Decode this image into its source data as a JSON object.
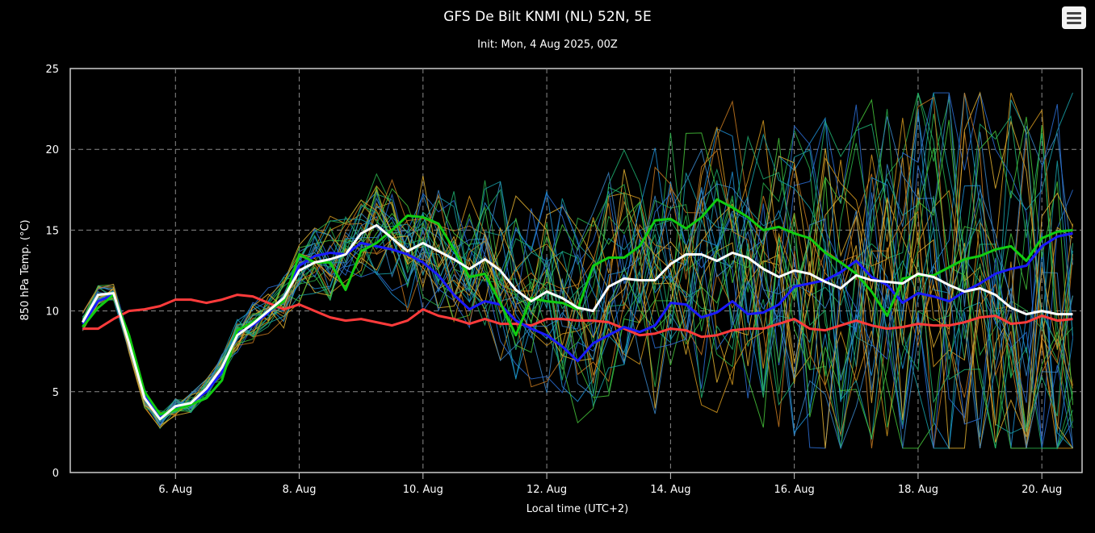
{
  "toolbar": {
    "menu_icon": "hamburger-menu-icon"
  },
  "chart_data": {
    "type": "line",
    "title": "GFS De Bilt KNMI (NL) 52N, 5E",
    "subtitle": "Init: Mon, 4 Aug 2025, 00Z",
    "xlabel": "Local time (UTC+2)",
    "ylabel": "850 hPa Temp. (°C)",
    "x_unit": "days since 4 Aug 2025 00:00 local",
    "xlim": [
      4.3,
      20.65
    ],
    "ylim": [
      0,
      25
    ],
    "y_ticks": [
      0,
      5,
      10,
      15,
      20,
      25
    ],
    "x_ticks": [
      {
        "x": 6,
        "label": "6. Aug"
      },
      {
        "x": 8,
        "label": "8. Aug"
      },
      {
        "x": 10,
        "label": "10. Aug"
      },
      {
        "x": 12,
        "label": "12. Aug"
      },
      {
        "x": 14,
        "label": "14. Aug"
      },
      {
        "x": 16,
        "label": "16. Aug"
      },
      {
        "x": 18,
        "label": "18. Aug"
      },
      {
        "x": 20,
        "label": "20. Aug"
      }
    ],
    "grid": true,
    "legend": "none",
    "member_count": 30,
    "member_colors": [
      "#1f8fd6",
      "#2ab04a",
      "#d69a1e",
      "#2c6fd6",
      "#18a0a8",
      "#45c43a",
      "#c87a20",
      "#3a86c8",
      "#1fb070",
      "#e0b030"
    ],
    "series": [
      {
        "name": "",
        "color": "#ffffff",
        "width": 3,
        "x": [
          4.5,
          4.75,
          5,
          5.25,
          5.5,
          5.75,
          6,
          6.25,
          6.5,
          6.75,
          7,
          7.25,
          7.5,
          7.75,
          8,
          8.25,
          8.5,
          8.75,
          9,
          9.25,
          9.5,
          9.75,
          10,
          10.25,
          10.5,
          10.75,
          11,
          11.25,
          11.5,
          11.75,
          12,
          12.25,
          12.5,
          12.75,
          13,
          13.25,
          13.5,
          13.75,
          14,
          14.25,
          14.5,
          14.75,
          15,
          15.25,
          15.5,
          15.75,
          16,
          16.25,
          16.5,
          16.75,
          17,
          17.25,
          17.5,
          17.75,
          18,
          18.25,
          18.5,
          18.75,
          19,
          19.25,
          19.5,
          19.75,
          20,
          20.25,
          20.5
        ],
        "values": [
          9.3,
          11.0,
          11.1,
          8.0,
          4.6,
          3.3,
          4.1,
          4.3,
          5.2,
          6.5,
          8.5,
          9.2,
          10.0,
          10.8,
          12.5,
          13.0,
          13.2,
          13.5,
          14.8,
          15.3,
          14.5,
          13.7,
          14.2,
          13.7,
          13.2,
          12.6,
          13.2,
          12.5,
          11.3,
          10.6,
          11.2,
          10.8,
          10.2,
          10.0,
          11.5,
          12.0,
          11.9,
          11.9,
          12.9,
          13.5,
          13.5,
          13.1,
          13.6,
          13.3,
          12.6,
          12.1,
          12.5,
          12.3,
          11.8,
          11.4,
          12.2,
          11.9,
          11.8,
          11.7,
          12.3,
          12.1,
          11.6,
          11.2,
          11.4,
          11.0,
          10.2,
          9.8,
          10.0,
          9.8,
          9.8
        ]
      },
      {
        "name": "",
        "color": "#11cc11",
        "width": 3,
        "x": [
          4.5,
          4.75,
          5,
          5.25,
          5.5,
          5.75,
          6,
          6.25,
          6.5,
          6.75,
          7,
          7.25,
          7.5,
          7.75,
          8,
          8.25,
          8.5,
          8.75,
          9,
          9.25,
          9.5,
          9.75,
          10,
          10.25,
          10.5,
          10.75,
          11,
          11.25,
          11.5,
          11.75,
          12,
          12.25,
          12.5,
          12.75,
          13,
          13.25,
          13.5,
          13.75,
          14,
          14.25,
          14.5,
          14.75,
          15,
          15.25,
          15.5,
          15.75,
          16,
          16.25,
          16.5,
          16.75,
          17,
          17.25,
          17.5,
          17.75,
          18,
          18.25,
          18.5,
          18.75,
          19,
          19.25,
          19.5,
          19.75,
          20,
          20.25,
          20.5
        ],
        "values": [
          9.0,
          10.2,
          11.0,
          8.5,
          5.0,
          3.6,
          3.9,
          4.2,
          4.6,
          5.7,
          8.8,
          9.3,
          10.0,
          10.6,
          13.5,
          13.0,
          13.0,
          11.3,
          13.7,
          14.2,
          15.0,
          15.9,
          15.8,
          15.4,
          13.8,
          12.1,
          12.3,
          10.5,
          8.5,
          10.8,
          10.6,
          10.5,
          10.1,
          12.8,
          13.3,
          13.3,
          14.0,
          15.6,
          15.7,
          15.1,
          15.8,
          16.9,
          16.4,
          15.8,
          15.0,
          15.2,
          14.8,
          14.5,
          13.6,
          13.0,
          12.3,
          11.2,
          9.7,
          12.0,
          12.2,
          12.2,
          12.7,
          13.2,
          13.4,
          13.8,
          14.0,
          13.1,
          14.5,
          14.9,
          15.0
        ]
      },
      {
        "name": "",
        "color": "#1a1aff",
        "width": 3,
        "x": [
          4.5,
          4.75,
          5,
          5.25,
          5.5,
          5.75,
          6,
          6.25,
          6.5,
          6.75,
          7,
          7.25,
          7.5,
          7.75,
          8,
          8.25,
          8.5,
          8.75,
          9,
          9.25,
          9.5,
          9.75,
          10,
          10.25,
          10.5,
          10.75,
          11,
          11.25,
          11.5,
          11.75,
          12,
          12.25,
          12.5,
          12.75,
          13,
          13.25,
          13.5,
          13.75,
          14,
          14.25,
          14.5,
          14.75,
          15,
          15.25,
          15.5,
          15.75,
          16,
          16.25,
          16.5,
          16.75,
          17,
          17.25,
          17.5,
          17.75,
          18,
          18.25,
          18.5,
          18.75,
          19,
          19.25,
          19.5,
          19.75,
          20,
          20.25,
          20.5
        ],
        "values": [
          9.2,
          10.6,
          11.0,
          8.2,
          4.8,
          3.4,
          4.0,
          4.3,
          5.0,
          6.2,
          8.6,
          9.1,
          9.9,
          10.7,
          12.8,
          13.4,
          13.6,
          13.5,
          14.2,
          14.0,
          13.8,
          13.5,
          13.0,
          12.2,
          11.0,
          10.1,
          10.6,
          10.4,
          9.4,
          8.9,
          8.5,
          7.8,
          6.9,
          8.0,
          8.5,
          9.0,
          8.7,
          9.1,
          10.5,
          10.4,
          9.6,
          9.9,
          10.6,
          9.8,
          9.9,
          10.4,
          11.5,
          11.7,
          11.9,
          12.4,
          13.1,
          12.1,
          11.6,
          10.5,
          11.1,
          10.9,
          10.6,
          11.2,
          11.7,
          12.3,
          12.6,
          12.8,
          14.0,
          14.6,
          14.8
        ]
      },
      {
        "name": "",
        "color": "#ff3b3b",
        "width": 3,
        "x": [
          4.5,
          4.75,
          5,
          5.25,
          5.5,
          5.75,
          6,
          6.25,
          6.5,
          6.75,
          7,
          7.25,
          7.5,
          7.75,
          8,
          8.25,
          8.5,
          8.75,
          9,
          9.25,
          9.5,
          9.75,
          10,
          10.25,
          10.5,
          10.75,
          11,
          11.25,
          11.5,
          11.75,
          12,
          12.25,
          12.5,
          12.75,
          13,
          13.25,
          13.5,
          13.75,
          14,
          14.25,
          14.5,
          14.75,
          15,
          15.25,
          15.5,
          15.75,
          16,
          16.25,
          16.5,
          16.75,
          17,
          17.25,
          17.5,
          17.75,
          18,
          18.25,
          18.5,
          18.75,
          19,
          19.25,
          19.5,
          19.75,
          20,
          20.25,
          20.5
        ],
        "values": [
          8.9,
          8.9,
          9.5,
          10.0,
          10.1,
          10.3,
          10.7,
          10.7,
          10.5,
          10.7,
          11.0,
          10.9,
          10.5,
          10.1,
          10.4,
          10.0,
          9.6,
          9.4,
          9.5,
          9.3,
          9.1,
          9.4,
          10.1,
          9.7,
          9.5,
          9.2,
          9.5,
          9.2,
          9.2,
          9.1,
          9.5,
          9.5,
          9.4,
          9.4,
          9.3,
          8.9,
          8.5,
          8.6,
          8.9,
          8.8,
          8.4,
          8.5,
          8.8,
          8.9,
          8.9,
          9.2,
          9.5,
          8.9,
          8.8,
          9.1,
          9.4,
          9.1,
          8.9,
          9.0,
          9.2,
          9.1,
          9.1,
          9.3,
          9.6,
          9.7,
          9.2,
          9.3,
          9.7,
          9.4,
          9.5
        ]
      }
    ]
  }
}
